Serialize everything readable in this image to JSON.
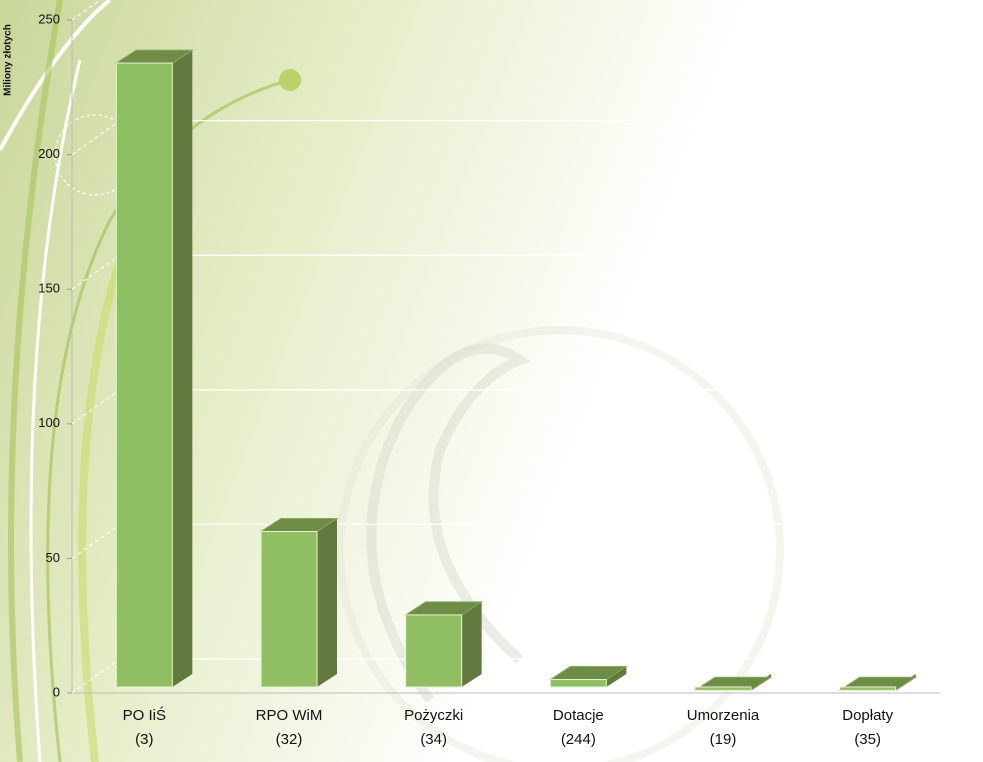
{
  "chart_data": {
    "type": "bar3d",
    "y_label": "Miliony złotych",
    "categories": [
      [
        "PO IiŚ",
        "(3)"
      ],
      [
        "RPO WiM",
        "(32)"
      ],
      [
        "Pożyczki",
        "(34)"
      ],
      [
        "Dotacje",
        "(244)"
      ],
      [
        "Umorzenia",
        "(19)"
      ],
      [
        "Dopłaty",
        "(35)"
      ]
    ],
    "values": [
      234,
      60,
      29,
      5,
      1,
      1
    ],
    "color": "#8fbf62",
    "ylim": [
      0,
      250
    ],
    "yticks": [
      0,
      50,
      100,
      150,
      200,
      250
    ],
    "grid": true
  }
}
